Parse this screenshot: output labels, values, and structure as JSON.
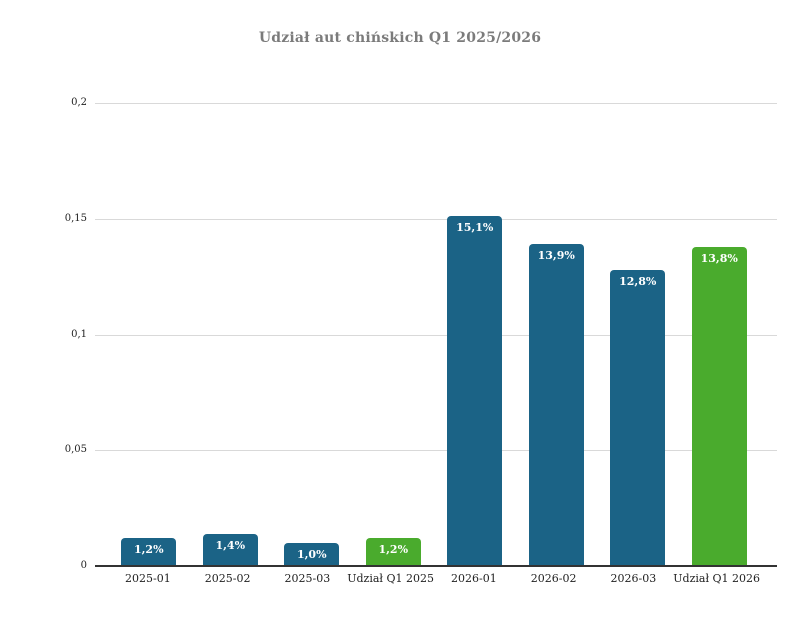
{
  "chart_data": {
    "type": "bar",
    "title": "Udział aut chińskich Q1 2025/2026",
    "categories": [
      "2025-01",
      "2025-02",
      "2025-03",
      "Udział Q1 2025",
      "2026-01",
      "2026-02",
      "2026-03",
      "Udział Q1 2026"
    ],
    "values": [
      0.012,
      0.014,
      0.01,
      0.012,
      0.151,
      0.139,
      0.128,
      0.138
    ],
    "data_labels": [
      "1,2%",
      "1,4%",
      "1,0%",
      "1,2%",
      "15,1%",
      "13,9%",
      "12,8%",
      "13,8%"
    ],
    "bar_types": [
      "monthly",
      "monthly",
      "monthly",
      "aggregate",
      "monthly",
      "monthly",
      "monthly",
      "aggregate"
    ],
    "colors": {
      "monthly": "#1b6386",
      "aggregate": "#4aab2d",
      "gridline": "#d9d9d9",
      "axis_line": "#333333",
      "title_text": "#7b7b7b",
      "tick_text": "#222222",
      "data_label_text": "#ffffff"
    },
    "y_axis": {
      "ticks": [
        "0",
        "0,05",
        "0,1",
        "0,15",
        "0,2"
      ],
      "tick_values": [
        0,
        0.05,
        0.1,
        0.15,
        0.2
      ],
      "max": 0.2
    },
    "xlabel": "",
    "ylabel": "",
    "grid": true,
    "legend": "none"
  }
}
